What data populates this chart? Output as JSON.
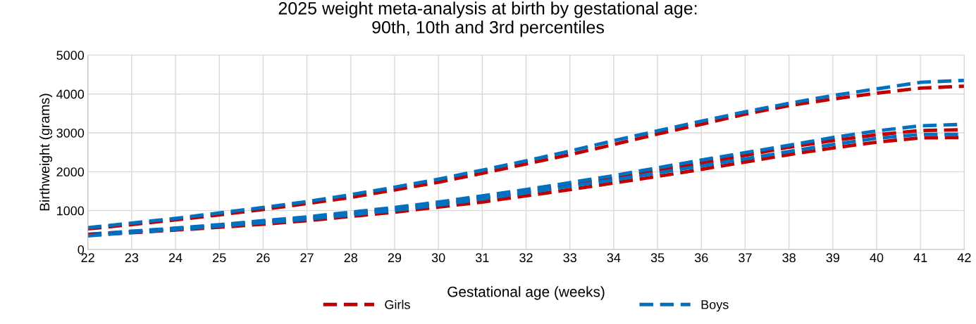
{
  "chart_data": {
    "type": "line",
    "title": "2025 weight meta-analysis at birth by gestational age:\n90th, 10th and 3rd percentiles",
    "xlabel": "Gestational age (weeks)",
    "ylabel": "Birthweight (grams)",
    "x": [
      22,
      23,
      24,
      25,
      26,
      27,
      28,
      29,
      30,
      31,
      32,
      33,
      34,
      35,
      36,
      37,
      38,
      39,
      40,
      41,
      42
    ],
    "xlim": [
      22,
      42
    ],
    "xticks": [
      22,
      23,
      24,
      25,
      26,
      27,
      28,
      29,
      30,
      31,
      32,
      33,
      34,
      35,
      36,
      37,
      38,
      39,
      40,
      41,
      42
    ],
    "ylim": [
      0,
      5000
    ],
    "yticks": [
      0,
      1000,
      2000,
      3000,
      4000,
      5000
    ],
    "grid": true,
    "legend": "bottom",
    "line_style": "dashed",
    "marker": "none",
    "series": [
      {
        "name": "Girls",
        "color": "#c00000",
        "values": [
          530,
          640,
          760,
          890,
          1030,
          1180,
          1340,
          1530,
          1730,
          1960,
          2200,
          2440,
          2700,
          2970,
          3220,
          3480,
          3700,
          3870,
          4020,
          4150,
          4200
        ]
      },
      {
        "name": "Boys",
        "color": "#0070c0",
        "values": [
          560,
          680,
          800,
          940,
          1080,
          1230,
          1410,
          1600,
          1810,
          2040,
          2280,
          2530,
          2800,
          3050,
          3300,
          3540,
          3760,
          3960,
          4130,
          4300,
          4350
        ]
      },
      {
        "color": "#c00000",
        "values": [
          390,
          460,
          540,
          620,
          710,
          800,
          920,
          1040,
          1170,
          1320,
          1480,
          1650,
          1830,
          2030,
          2220,
          2420,
          2630,
          2800,
          2950,
          3060,
          3080
        ]
      },
      {
        "color": "#0070c0",
        "values": [
          390,
          470,
          550,
          640,
          740,
          840,
          960,
          1080,
          1220,
          1380,
          1540,
          1720,
          1900,
          2100,
          2300,
          2490,
          2680,
          2880,
          3050,
          3180,
          3220
        ]
      },
      {
        "color": "#c00000",
        "values": [
          370,
          430,
          500,
          570,
          650,
          740,
          850,
          960,
          1090,
          1220,
          1380,
          1540,
          1710,
          1880,
          2060,
          2250,
          2440,
          2610,
          2760,
          2870,
          2880
        ]
      },
      {
        "color": "#0070c0",
        "values": [
          350,
          440,
          520,
          600,
          690,
          780,
          890,
          1010,
          1140,
          1300,
          1460,
          1630,
          1790,
          1970,
          2150,
          2330,
          2520,
          2700,
          2860,
          2960,
          2960
        ]
      }
    ]
  }
}
